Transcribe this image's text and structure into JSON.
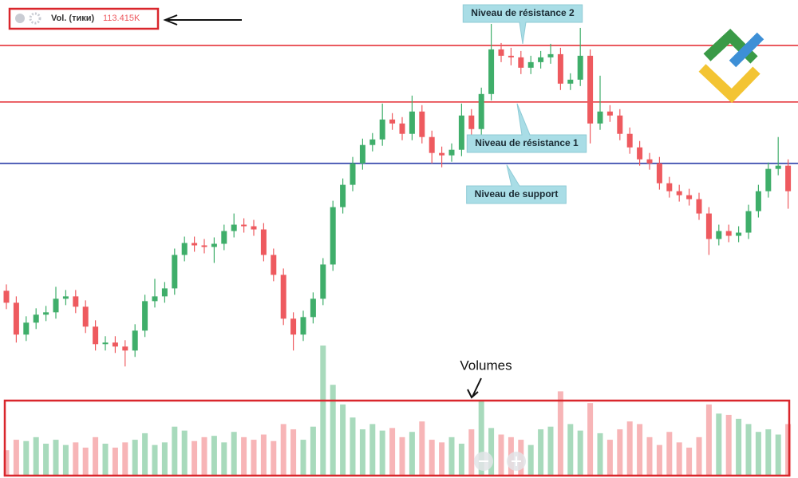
{
  "chart_data": {
    "type": "candlestick",
    "indicator_label": "Vol. (тики)",
    "indicator_value": "113.415K",
    "volume_title": "Volumes",
    "up_color": "#3fae6a",
    "down_color": "#ee5a5f",
    "ylim": [
      0,
      600
    ],
    "volume_ylim": [
      0,
      100
    ],
    "levels": [
      {
        "name": "Niveau de résistance 2",
        "value": 543,
        "color": "#e5343a"
      },
      {
        "name": "Niveau de résistance 1",
        "value": 472,
        "color": "#e5343a"
      },
      {
        "name": "Niveau de support",
        "value": 395,
        "color": "#2c3fa8"
      }
    ],
    "open": [
      235,
      220,
      180,
      195,
      205,
      208,
      225,
      228,
      215,
      190,
      168,
      170,
      165,
      160,
      185,
      222,
      228,
      238,
      280,
      295,
      292,
      290,
      294,
      310,
      318,
      316,
      312,
      280,
      255,
      200,
      180,
      202,
      225,
      268,
      340,
      368,
      395,
      418,
      425,
      450,
      445,
      432,
      460,
      428,
      408,
      405,
      412,
      455,
      438,
      482,
      538,
      530,
      528,
      515,
      522,
      528,
      532,
      495,
      500,
      530,
      445,
      460,
      455,
      432,
      415,
      400,
      395,
      370,
      360,
      355,
      350,
      332,
      300,
      310,
      304,
      308,
      335,
      360,
      388,
      392
    ],
    "high": [
      243,
      228,
      203,
      213,
      216,
      240,
      236,
      236,
      223,
      198,
      178,
      178,
      173,
      193,
      230,
      250,
      246,
      288,
      303,
      303,
      300,
      302,
      318,
      332,
      326,
      324,
      320,
      288,
      263,
      208,
      210,
      233,
      276,
      348,
      376,
      403,
      426,
      433,
      470,
      458,
      453,
      480,
      468,
      436,
      416,
      420,
      470,
      463,
      490,
      570,
      546,
      540,
      536,
      530,
      536,
      545,
      540,
      508,
      565,
      538,
      505,
      468,
      463,
      440,
      423,
      408,
      403,
      378,
      368,
      363,
      358,
      340,
      318,
      318,
      316,
      343,
      368,
      396,
      428,
      400
    ],
    "low": [
      212,
      170,
      172,
      187,
      197,
      200,
      217,
      207,
      182,
      160,
      160,
      157,
      140,
      152,
      177,
      214,
      220,
      230,
      272,
      284,
      282,
      270,
      286,
      302,
      308,
      304,
      272,
      247,
      192,
      160,
      172,
      194,
      217,
      260,
      332,
      360,
      387,
      410,
      417,
      437,
      424,
      424,
      420,
      395,
      390,
      397,
      404,
      430,
      430,
      474,
      522,
      518,
      507,
      507,
      514,
      520,
      487,
      487,
      492,
      420,
      437,
      447,
      424,
      407,
      392,
      387,
      362,
      352,
      347,
      342,
      324,
      280,
      292,
      296,
      296,
      300,
      327,
      352,
      380,
      338
    ],
    "close": [
      220,
      180,
      195,
      205,
      208,
      225,
      228,
      215,
      190,
      168,
      170,
      165,
      160,
      185,
      222,
      228,
      238,
      280,
      295,
      292,
      290,
      294,
      310,
      318,
      316,
      312,
      280,
      255,
      200,
      180,
      202,
      225,
      268,
      340,
      368,
      395,
      418,
      425,
      450,
      445,
      432,
      460,
      428,
      408,
      405,
      412,
      455,
      438,
      482,
      538,
      530,
      528,
      515,
      522,
      528,
      532,
      495,
      500,
      530,
      445,
      460,
      455,
      432,
      415,
      400,
      395,
      370,
      360,
      355,
      350,
      332,
      300,
      310,
      304,
      308,
      335,
      360,
      388,
      392,
      360
    ],
    "volume": [
      20,
      28,
      27,
      30,
      25,
      28,
      24,
      26,
      22,
      30,
      25,
      22,
      26,
      28,
      33,
      24,
      26,
      38,
      35,
      27,
      30,
      31,
      26,
      34,
      30,
      28,
      32,
      27,
      40,
      36,
      28,
      38,
      100,
      70,
      55,
      45,
      36,
      40,
      35,
      37,
      30,
      34,
      42,
      28,
      26,
      30,
      25,
      36,
      58,
      37,
      32,
      30,
      28,
      24,
      36,
      38,
      65,
      40,
      35,
      56,
      33,
      28,
      36,
      42,
      40,
      30,
      24,
      34,
      26,
      22,
      30,
      55,
      48,
      47,
      44,
      40,
      34,
      36,
      32,
      40
    ]
  }
}
